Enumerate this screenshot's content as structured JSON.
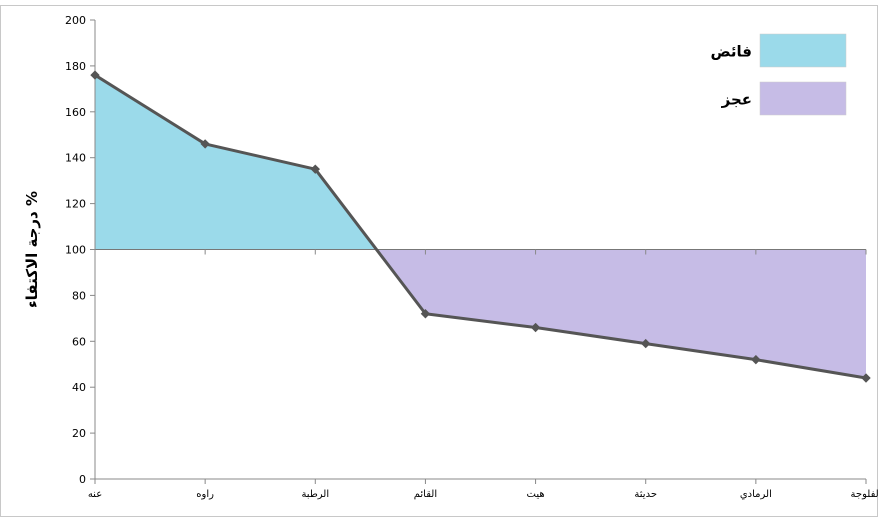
{
  "chart_data": {
    "type": "area",
    "categories": [
      "عنه",
      "راوه",
      "الرطبة",
      "القائم",
      "هيت",
      "حديثة",
      "الرمادي",
      "الفلوجة"
    ],
    "values": [
      176,
      146,
      135,
      72,
      66,
      59,
      52,
      44
    ],
    "baseline": 100,
    "ylabel": "درجة الاكتفاء %",
    "ylim": [
      0,
      200
    ],
    "yticks": [
      0,
      20,
      40,
      60,
      80,
      100,
      120,
      140,
      160,
      180,
      200
    ],
    "legend": [
      {
        "label": "فائض",
        "color": "#9BDAEA"
      },
      {
        "label": "عجز",
        "color": "#C6BCE6"
      }
    ],
    "legend_position": "top-right",
    "line_color": "#555555",
    "surplus_color": "#9BDAEA",
    "deficit_color": "#C6BCE6",
    "grid": false
  }
}
